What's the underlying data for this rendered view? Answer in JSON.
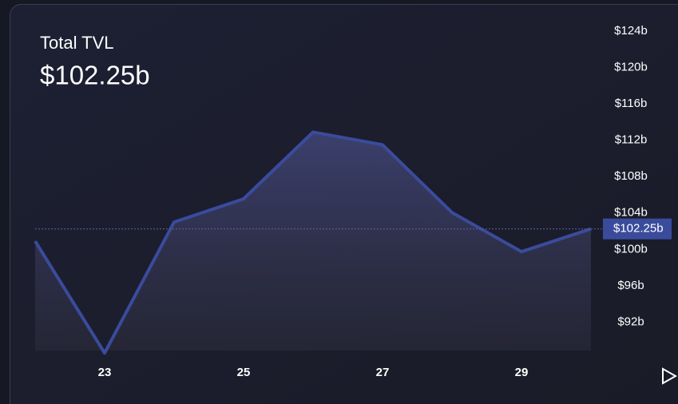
{
  "chart_data": {
    "type": "area",
    "title": "Total TVL",
    "headline": "$102.25b",
    "current_label": "$102.25b",
    "x": [
      22,
      23,
      24,
      25,
      26,
      27,
      28,
      29,
      30
    ],
    "series": [
      {
        "color": "#3b4b9c",
        "values": [
          100.9,
          88.6,
          103.0,
          105.55,
          112.9,
          111.5,
          104.05,
          99.75,
          102.25
        ]
      }
    ],
    "xlim": [
      22,
      30
    ],
    "xticks": [
      23,
      25,
      27,
      29
    ],
    "ylim": [
      88,
      124
    ],
    "yticks": [
      {
        "value": 124,
        "label": "$124b"
      },
      {
        "value": 120,
        "label": "$120b"
      },
      {
        "value": 116,
        "label": "$116b"
      },
      {
        "value": 112,
        "label": "$112b"
      },
      {
        "value": 108,
        "label": "$108b"
      },
      {
        "value": 104,
        "label": "$104b"
      },
      {
        "value": 100,
        "label": "$100b"
      },
      {
        "value": 96,
        "label": "$96b"
      },
      {
        "value": 92,
        "label": "$92b"
      }
    ]
  }
}
